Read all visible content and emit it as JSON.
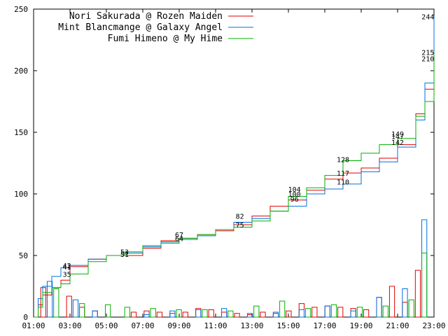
{
  "chart_data": {
    "type": "line",
    "title": "",
    "xlabel": "",
    "ylabel": "",
    "ylim": [
      0,
      250
    ],
    "xlim": [
      "01:00",
      "23:00"
    ],
    "grid": false,
    "legend_position": "top-left",
    "x_ticks": [
      "01:00",
      "03:00",
      "05:00",
      "07:00",
      "09:00",
      "11:00",
      "13:00",
      "15:00",
      "17:00",
      "19:00",
      "21:00",
      "23:00"
    ],
    "y_ticks": [
      0,
      50,
      100,
      150,
      200,
      250
    ],
    "series": [
      {
        "name": "Nori Sakurada @ Rozen Maiden",
        "color": "#e00000",
        "cumulative": [
          [
            "01:00",
            0
          ],
          [
            "01:15",
            10
          ],
          [
            "01:30",
            18
          ],
          [
            "02:00",
            24
          ],
          [
            "02:30",
            30
          ],
          [
            "03:00",
            41
          ],
          [
            "04:00",
            47
          ],
          [
            "05:00",
            50
          ],
          [
            "06:00",
            50
          ],
          [
            "07:00",
            56
          ],
          [
            "08:00",
            62
          ],
          [
            "09:00",
            64
          ],
          [
            "10:00",
            67
          ],
          [
            "11:00",
            70
          ],
          [
            "12:00",
            75
          ],
          [
            "13:00",
            82
          ],
          [
            "14:00",
            90
          ],
          [
            "15:00",
            95
          ],
          [
            "16:00",
            103
          ],
          [
            "17:00",
            112
          ],
          [
            "18:00",
            117
          ],
          [
            "19:00",
            121
          ],
          [
            "20:00",
            129
          ],
          [
            "21:00",
            140
          ],
          [
            "22:00",
            165
          ],
          [
            "22:30",
            185
          ],
          [
            "23:00",
            210
          ]
        ],
        "bars": [
          0,
          24,
          0,
          0,
          0,
          17,
          0,
          8,
          0,
          5,
          0,
          0,
          0,
          0,
          0,
          4,
          0,
          5,
          0,
          4,
          0,
          3,
          0,
          4,
          0,
          7,
          0,
          6,
          0,
          4,
          0,
          3,
          0,
          2,
          0,
          4,
          0,
          3,
          0,
          5,
          0,
          11,
          0,
          8,
          0,
          9,
          0,
          8,
          0,
          7,
          0,
          6,
          0,
          16,
          0,
          25,
          0,
          12,
          0,
          38,
          0,
          0
        ]
      },
      {
        "name": "Mint Blancmange @ Galaxy Angel",
        "color": "#0070e0",
        "cumulative": [
          [
            "01:00",
            0
          ],
          [
            "01:15",
            15
          ],
          [
            "01:30",
            25
          ],
          [
            "02:00",
            33
          ],
          [
            "02:30",
            40
          ],
          [
            "03:00",
            42
          ],
          [
            "04:00",
            47
          ],
          [
            "05:00",
            50
          ],
          [
            "06:00",
            52
          ],
          [
            "07:00",
            57
          ],
          [
            "08:00",
            61
          ],
          [
            "09:00",
            63
          ],
          [
            "10:00",
            66
          ],
          [
            "11:00",
            71
          ],
          [
            "12:00",
            77
          ],
          [
            "13:00",
            80
          ],
          [
            "14:00",
            86
          ],
          [
            "15:00",
            90
          ],
          [
            "16:00",
            100
          ],
          [
            "17:00",
            104
          ],
          [
            "18:00",
            108
          ],
          [
            "19:00",
            118
          ],
          [
            "20:00",
            126
          ],
          [
            "21:00",
            138
          ],
          [
            "22:00",
            160
          ],
          [
            "22:30",
            190
          ],
          [
            "23:00",
            244
          ]
        ],
        "bars": [
          0,
          0,
          29,
          0,
          0,
          0,
          14,
          0,
          0,
          5,
          0,
          0,
          0,
          0,
          0,
          0,
          0,
          2,
          0,
          0,
          0,
          5,
          0,
          0,
          0,
          6,
          0,
          0,
          0,
          7,
          0,
          0,
          0,
          3,
          0,
          0,
          0,
          4,
          0,
          0,
          0,
          6,
          0,
          0,
          0,
          9,
          0,
          0,
          0,
          5,
          0,
          0,
          0,
          16,
          0,
          0,
          0,
          23,
          0,
          0,
          79,
          0
        ]
      },
      {
        "name": "Fumi Himeno @ My Hime",
        "color": "#00b000",
        "cumulative": [
          [
            "01:00",
            0
          ],
          [
            "01:15",
            8
          ],
          [
            "01:30",
            20
          ],
          [
            "02:00",
            24
          ],
          [
            "02:30",
            27
          ],
          [
            "03:00",
            35
          ],
          [
            "04:00",
            45
          ],
          [
            "05:00",
            50
          ],
          [
            "06:00",
            53
          ],
          [
            "07:00",
            58
          ],
          [
            "08:00",
            60
          ],
          [
            "09:00",
            64
          ],
          [
            "10:00",
            67
          ],
          [
            "11:00",
            71
          ],
          [
            "12:00",
            73
          ],
          [
            "13:00",
            78
          ],
          [
            "14:00",
            86
          ],
          [
            "15:00",
            98
          ],
          [
            "16:00",
            105
          ],
          [
            "17:00",
            115
          ],
          [
            "18:00",
            127
          ],
          [
            "19:00",
            133
          ],
          [
            "20:00",
            140
          ],
          [
            "21:00",
            145
          ],
          [
            "22:00",
            163
          ],
          [
            "22:30",
            175
          ],
          [
            "23:00",
            215
          ]
        ],
        "bars": [
          0,
          0,
          0,
          23,
          0,
          0,
          0,
          11,
          0,
          0,
          0,
          10,
          0,
          0,
          8,
          0,
          0,
          0,
          7,
          0,
          0,
          0,
          6,
          0,
          0,
          0,
          6,
          0,
          0,
          0,
          5,
          0,
          0,
          0,
          9,
          0,
          0,
          0,
          13,
          0,
          0,
          0,
          7,
          0,
          0,
          0,
          10,
          0,
          0,
          0,
          8,
          0,
          0,
          0,
          9,
          0,
          0,
          0,
          14,
          0,
          52,
          0
        ]
      }
    ],
    "annotations": [
      {
        "time": "02:50",
        "value": 42,
        "label": "42"
      },
      {
        "time": "02:50",
        "value": 41,
        "label": "41"
      },
      {
        "time": "02:50",
        "value": 35,
        "label": "35"
      },
      {
        "time": "06:00",
        "value": 53,
        "label": "53"
      },
      {
        "time": "06:00",
        "value": 51,
        "label": "51"
      },
      {
        "time": "09:00",
        "value": 67,
        "label": "67"
      },
      {
        "time": "09:00",
        "value": 64,
        "label": "64"
      },
      {
        "time": "12:20",
        "value": 82,
        "label": "82"
      },
      {
        "time": "12:20",
        "value": 75,
        "label": "75"
      },
      {
        "time": "15:20",
        "value": 104,
        "label": "104"
      },
      {
        "time": "15:20",
        "value": 100,
        "label": "100"
      },
      {
        "time": "15:20",
        "value": 96,
        "label": "96"
      },
      {
        "time": "18:00",
        "value": 128,
        "label": "128"
      },
      {
        "time": "18:00",
        "value": 117,
        "label": "117"
      },
      {
        "time": "18:00",
        "value": 110,
        "label": "110"
      },
      {
        "time": "21:00",
        "value": 149,
        "label": "149"
      },
      {
        "time": "21:00",
        "value": 147,
        "label": "147"
      },
      {
        "time": "21:00",
        "value": 142,
        "label": "142"
      },
      {
        "time": "22:40",
        "value": 244,
        "label": "244"
      },
      {
        "time": "22:40",
        "value": 215,
        "label": "215"
      },
      {
        "time": "22:40",
        "value": 210,
        "label": "210"
      }
    ]
  }
}
